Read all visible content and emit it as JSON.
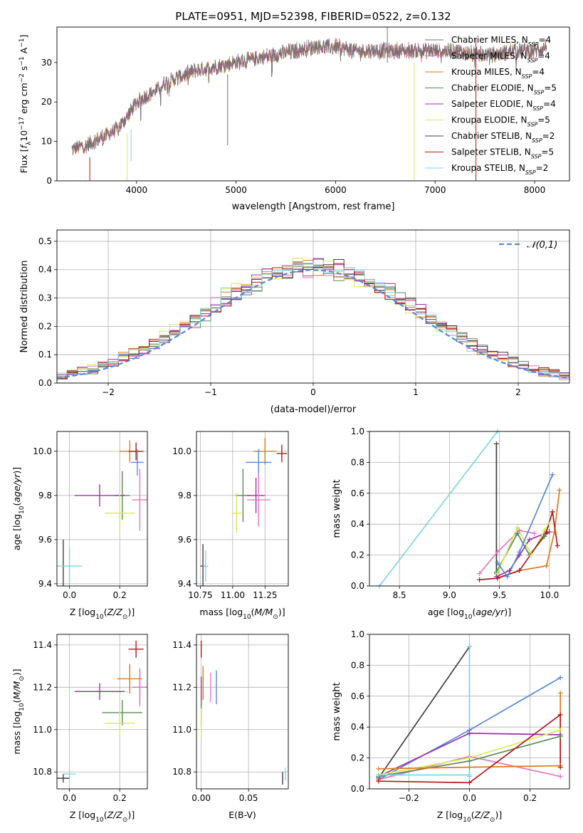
{
  "figure_title": "PLATE=0951, MJD=52398, FIBERID=0522, z=0.132",
  "colors": {
    "Chabrier MILES": "#707070",
    "Salpeter MILES": "#e377c2",
    "Kroupa MILES": "#d97a1e",
    "Chabrier ELODIE": "#5a8a5a",
    "Salpeter ELODIE": "#9b30a8",
    "Kroupa ELODIE": "#d8e85a",
    "Chabrier STELIB": "#404040",
    "Salpeter STELIB": "#b01818",
    "Kroupa STELIB": "#7fd6e0",
    "extra": "#5a86d6",
    "normal": "#5a86d6"
  },
  "chart_data": [
    {
      "id": "spectrum",
      "type": "line",
      "xlabel": "wavelength [Angstrom, rest frame]",
      "ylabel": "Flux [f_λ 10^-17 erg cm^-2 s^-1 A^-1]",
      "xlim": [
        3200,
        8350
      ],
      "ylim": [
        0,
        39
      ],
      "xticks": [
        4000,
        5000,
        6000,
        7000,
        8000
      ],
      "yticks": [
        0,
        10,
        20,
        30
      ],
      "grid": false,
      "legend_position": "right",
      "legend": [
        "Chabrier MILES, N_SSP=4",
        "Salpeter MILES, N_SSP=4",
        "Kroupa MILES, N_SSP=4",
        "Chabrier ELODIE, N_SSP=5",
        "Salpeter ELODIE, N_SSP=4",
        "Kroupa ELODIE, N_SSP=5",
        "Chabrier STELIB, N_SSP=2",
        "Salpeter STELIB, N_SSP=5",
        "Kroupa STELIB, N_SSP=2"
      ],
      "continuum": [
        [
          3350,
          8
        ],
        [
          3500,
          9
        ],
        [
          3650,
          11
        ],
        [
          3800,
          13
        ],
        [
          3900,
          16
        ],
        [
          4000,
          20
        ],
        [
          4200,
          23
        ],
        [
          4300,
          25
        ],
        [
          4400,
          26
        ],
        [
          4600,
          28
        ],
        [
          4800,
          29
        ],
        [
          5000,
          30
        ],
        [
          5200,
          31
        ],
        [
          5400,
          32
        ],
        [
          5600,
          33
        ],
        [
          5800,
          34
        ],
        [
          6000,
          34
        ],
        [
          6200,
          33
        ],
        [
          6400,
          33
        ],
        [
          6600,
          33
        ],
        [
          6800,
          33
        ],
        [
          7000,
          33
        ],
        [
          7200,
          33
        ],
        [
          7400,
          32
        ],
        [
          7600,
          32
        ],
        [
          7800,
          33
        ],
        [
          8000,
          33
        ],
        [
          8120,
          34
        ]
      ]
    },
    {
      "id": "residuals",
      "type": "histogram",
      "xlabel": "(data-model)/error",
      "ylabel": "Normed distribution",
      "xlim": [
        -2.5,
        2.5
      ],
      "ylim": [
        0,
        0.54
      ],
      "xticks": [
        -2,
        -1,
        0,
        1,
        2
      ],
      "yticks": [
        0.0,
        0.1,
        0.2,
        0.3,
        0.4,
        0.5
      ],
      "grid": true,
      "legend_position": "top-right",
      "legend": [
        "𝒩(0,1)"
      ],
      "bin_width": 0.1
    },
    {
      "id": "age_vs_Z",
      "type": "errorbar",
      "xlabel": "Z [log10(Z/Z⊙)]",
      "ylabel": "age [log10(age/yr)]",
      "xlim": [
        -0.05,
        0.31
      ],
      "ylim": [
        9.39,
        10.09
      ],
      "xticks": [
        0.0,
        0.2
      ],
      "yticks": [
        9.4,
        9.6,
        9.8,
        10.0
      ],
      "grid": true,
      "points": [
        {
          "model": "Kroupa MILES",
          "x": 0.24,
          "xerr": 0.04,
          "y": 10.0,
          "yerr": 0.05
        },
        {
          "model": "Salpeter STELIB",
          "x": 0.265,
          "xerr": 0.03,
          "y": 10.0,
          "yerr": 0.04
        },
        {
          "model": "extra",
          "x": 0.27,
          "xerr": 0.025,
          "y": 9.95,
          "yerr": 0.06
        },
        {
          "model": "Chabrier ELODIE",
          "x": 0.21,
          "xerr": 0.03,
          "y": 9.8,
          "yerr": 0.11
        },
        {
          "model": "Salpeter ELODIE",
          "x": 0.12,
          "xerr": 0.1,
          "y": 9.8,
          "yerr": 0.05
        },
        {
          "model": "Salpeter MILES",
          "x": 0.28,
          "xerr": 0.03,
          "y": 9.78,
          "yerr": 0.14
        },
        {
          "model": "Kroupa ELODIE",
          "x": 0.2,
          "xerr": 0.06,
          "y": 9.72,
          "yerr": 0.09
        },
        {
          "model": "Chabrier STELIB",
          "x": -0.025,
          "xerr": 0.0,
          "y": 9.48,
          "yerr": 0.12
        },
        {
          "model": "Kroupa STELIB",
          "x": 0.0,
          "xerr": 0.05,
          "y": 9.48,
          "yerr": 0.08
        }
      ]
    },
    {
      "id": "age_vs_mass",
      "type": "errorbar",
      "xlabel": "mass [log10(M/M⊙)]",
      "ylabel": "",
      "xlim": [
        10.72,
        11.43
      ],
      "ylim": [
        9.39,
        10.09
      ],
      "xticks": [
        10.75,
        11.0,
        11.25
      ],
      "yticks": [
        9.4,
        9.6,
        9.8,
        10.0
      ],
      "grid": true,
      "points": [
        {
          "model": "Kroupa MILES",
          "x": 11.25,
          "xerr": 0.09,
          "y": 10.0,
          "yerr": 0.06
        },
        {
          "model": "Salpeter STELIB",
          "x": 11.38,
          "xerr": 0.04,
          "y": 9.99,
          "yerr": 0.04
        },
        {
          "model": "extra",
          "x": 11.2,
          "xerr": 0.1,
          "y": 9.95,
          "yerr": 0.06
        },
        {
          "model": "Chabrier ELODIE",
          "x": 11.08,
          "xerr": 0.06,
          "y": 9.8,
          "yerr": 0.12
        },
        {
          "model": "Salpeter ELODIE",
          "x": 11.18,
          "xerr": 0.07,
          "y": 9.8,
          "yerr": 0.08
        },
        {
          "model": "Salpeter MILES",
          "x": 11.2,
          "xerr": 0.09,
          "y": 9.78,
          "yerr": 0.12
        },
        {
          "model": "Kroupa ELODIE",
          "x": 11.03,
          "xerr": 0.04,
          "y": 9.72,
          "yerr": 0.09
        },
        {
          "model": "Chabrier STELIB",
          "x": 10.77,
          "xerr": 0.02,
          "y": 9.48,
          "yerr": 0.1
        },
        {
          "model": "Kroupa STELIB",
          "x": 10.79,
          "xerr": 0.02,
          "y": 9.48,
          "yerr": 0.07
        }
      ]
    },
    {
      "id": "weight_vs_age",
      "type": "line",
      "xlabel": "age [log10(age/yr)]",
      "ylabel": "mass weight",
      "xlim": [
        8.2,
        10.2
      ],
      "ylim": [
        0,
        1
      ],
      "xticks": [
        8.5,
        9.0,
        9.5,
        10.0
      ],
      "yticks": [
        0.0,
        0.2,
        0.4,
        0.6,
        0.8,
        1.0
      ],
      "grid": true,
      "series": [
        {
          "model": "Kroupa STELIB",
          "x": [
            8.3,
            9.48
          ],
          "y": [
            0.0,
            1.0
          ]
        },
        {
          "model": "Chabrier STELIB",
          "x": [
            9.47,
            9.47
          ],
          "y": [
            0.08,
            0.92
          ]
        },
        {
          "model": "Salpeter MILES",
          "x": [
            9.3,
            9.48,
            9.7,
            9.85
          ],
          "y": [
            0.08,
            0.22,
            0.36,
            0.34
          ]
        },
        {
          "model": "Kroupa MILES",
          "x": [
            9.48,
            9.7,
            9.97,
            10.05,
            10.1
          ],
          "y": [
            0.05,
            0.1,
            0.13,
            0.35,
            0.62
          ]
        },
        {
          "model": "Chabrier ELODIE",
          "x": [
            9.47,
            9.68,
            9.8,
            9.95,
            10.0
          ],
          "y": [
            0.09,
            0.34,
            0.2,
            0.32,
            0.35
          ]
        },
        {
          "model": "Salpeter ELODIE",
          "x": [
            9.47,
            9.6,
            9.7,
            9.8,
            10.0
          ],
          "y": [
            0.06,
            0.1,
            0.2,
            0.3,
            0.35
          ]
        },
        {
          "model": "Kroupa ELODIE",
          "x": [
            9.48,
            9.68,
            9.82,
            9.95,
            10.0
          ],
          "y": [
            0.08,
            0.38,
            0.2,
            0.36,
            0.4
          ]
        },
        {
          "model": "Salpeter STELIB",
          "x": [
            9.3,
            9.48,
            9.7,
            9.97,
            10.03,
            10.08
          ],
          "y": [
            0.04,
            0.05,
            0.1,
            0.35,
            0.48,
            0.26
          ]
        },
        {
          "model": "extra",
          "x": [
            9.48,
            9.58,
            9.7,
            10.03
          ],
          "y": [
            0.15,
            0.06,
            0.22,
            0.72
          ]
        }
      ]
    },
    {
      "id": "mass_vs_Z",
      "type": "errorbar",
      "xlabel": "Z [log10(Z/Z⊙)]",
      "ylabel": "mass [log10(M/M⊙)]",
      "xlim": [
        -0.05,
        0.31
      ],
      "ylim": [
        10.72,
        11.45
      ],
      "xticks": [
        0.0,
        0.2
      ],
      "yticks": [
        10.8,
        11.0,
        11.2,
        11.4
      ],
      "grid": true,
      "points": [
        {
          "model": "Salpeter STELIB",
          "x": 0.265,
          "xerr": 0.03,
          "y": 11.38,
          "yerr": 0.04
        },
        {
          "model": "Kroupa MILES",
          "x": 0.24,
          "xerr": 0.05,
          "y": 11.24,
          "yerr": 0.07
        },
        {
          "model": "extra",
          "x": 0.28,
          "xerr": 0.03,
          "y": 11.2,
          "yerr": 0.08
        },
        {
          "model": "Salpeter ELODIE",
          "x": 0.12,
          "xerr": 0.1,
          "y": 11.18,
          "yerr": 0.04
        },
        {
          "model": "Salpeter MILES",
          "x": 0.28,
          "xerr": 0.03,
          "y": 11.2,
          "yerr": 0.09
        },
        {
          "model": "Chabrier ELODIE",
          "x": 0.21,
          "xerr": 0.08,
          "y": 11.08,
          "yerr": 0.06
        },
        {
          "model": "Kroupa ELODIE",
          "x": 0.2,
          "xerr": 0.06,
          "y": 11.03,
          "yerr": 0.06
        },
        {
          "model": "Chabrier STELIB",
          "x": -0.025,
          "xerr": 0.025,
          "y": 10.77,
          "yerr": 0.02
        },
        {
          "model": "Kroupa STELIB",
          "x": 0.0,
          "xerr": 0.025,
          "y": 10.79,
          "yerr": 0.02
        }
      ]
    },
    {
      "id": "mass_vs_EBV",
      "type": "errorbar",
      "xlabel": "E(B-V)",
      "ylabel": "",
      "xlim": [
        -0.005,
        0.092
      ],
      "ylim": [
        10.72,
        11.45
      ],
      "xticks": [
        0.0,
        0.05
      ],
      "yticks": [
        10.8,
        11.0,
        11.2,
        11.4
      ],
      "grid": true,
      "points": [
        {
          "model": "Salpeter STELIB",
          "x": 0.0,
          "y": 11.38,
          "yerr": 0.04
        },
        {
          "model": "Kroupa MILES",
          "x": 0.002,
          "y": 11.22,
          "yerr": 0.08
        },
        {
          "model": "Salpeter ELODIE",
          "x": 0.0,
          "y": 11.18,
          "yerr": 0.07
        },
        {
          "model": "Salpeter MILES",
          "x": 0.01,
          "y": 11.2,
          "yerr": 0.07
        },
        {
          "model": "extra",
          "x": 0.016,
          "y": 11.2,
          "yerr": 0.08
        },
        {
          "model": "Chabrier ELODIE",
          "x": 0.0,
          "y": 11.08,
          "yerr": 0.06
        },
        {
          "model": "Kroupa ELODIE",
          "x": 0.0,
          "y": 11.03,
          "yerr": 0.07
        },
        {
          "model": "Chabrier STELIB",
          "x": 0.086,
          "y": 10.77,
          "yerr": 0.03
        },
        {
          "model": "Kroupa STELIB",
          "x": 0.089,
          "y": 10.79,
          "yerr": 0.03
        }
      ]
    },
    {
      "id": "weight_vs_Z",
      "type": "line",
      "xlabel": "Z [log10(Z/Z⊙)]",
      "ylabel": "mass weight",
      "xlim": [
        -0.33,
        0.33
      ],
      "ylim": [
        0,
        1
      ],
      "xticks": [
        -0.2,
        0.0,
        0.2
      ],
      "yticks": [
        0.0,
        0.2,
        0.4,
        0.6,
        0.8,
        1.0
      ],
      "grid": true,
      "series": [
        {
          "model": "Chabrier STELIB",
          "x": [
            -0.3,
            0.0
          ],
          "y": [
            0.07,
            0.92
          ]
        },
        {
          "model": "Kroupa STELIB",
          "x": [
            0.0,
            0.0
          ],
          "y": [
            0.08,
            0.92
          ]
        },
        {
          "model": "extra",
          "x": [
            -0.3,
            0.0,
            0.3
          ],
          "y": [
            0.06,
            0.38,
            0.72
          ]
        },
        {
          "model": "Salpeter ELODIE",
          "x": [
            -0.3,
            0.0,
            0.3
          ],
          "y": [
            0.08,
            0.36,
            0.35
          ]
        },
        {
          "model": "Salpeter MILES",
          "x": [
            -0.3,
            0.0,
            0.3
          ],
          "y": [
            0.06,
            0.21,
            0.08
          ]
        },
        {
          "model": "Kroupa ELODIE",
          "x": [
            -0.3,
            0.0,
            0.3
          ],
          "y": [
            0.09,
            0.2,
            0.38
          ]
        },
        {
          "model": "Chabrier ELODIE",
          "x": [
            -0.3,
            0.0,
            0.3
          ],
          "y": [
            0.08,
            0.18,
            0.34
          ]
        },
        {
          "model": "Kroupa MILES",
          "x": [
            -0.3,
            0.0,
            0.3,
            0.3
          ],
          "y": [
            0.13,
            0.14,
            0.15,
            0.62
          ]
        },
        {
          "model": "Salpeter STELIB",
          "x": [
            -0.3,
            0.0,
            0.3,
            0.3
          ],
          "y": [
            0.05,
            0.04,
            0.48,
            0.14
          ]
        },
        {
          "model": "Kroupa STELIB",
          "x": [
            -0.3,
            0.0
          ],
          "y": [
            0.09,
            0.09
          ]
        }
      ]
    }
  ]
}
